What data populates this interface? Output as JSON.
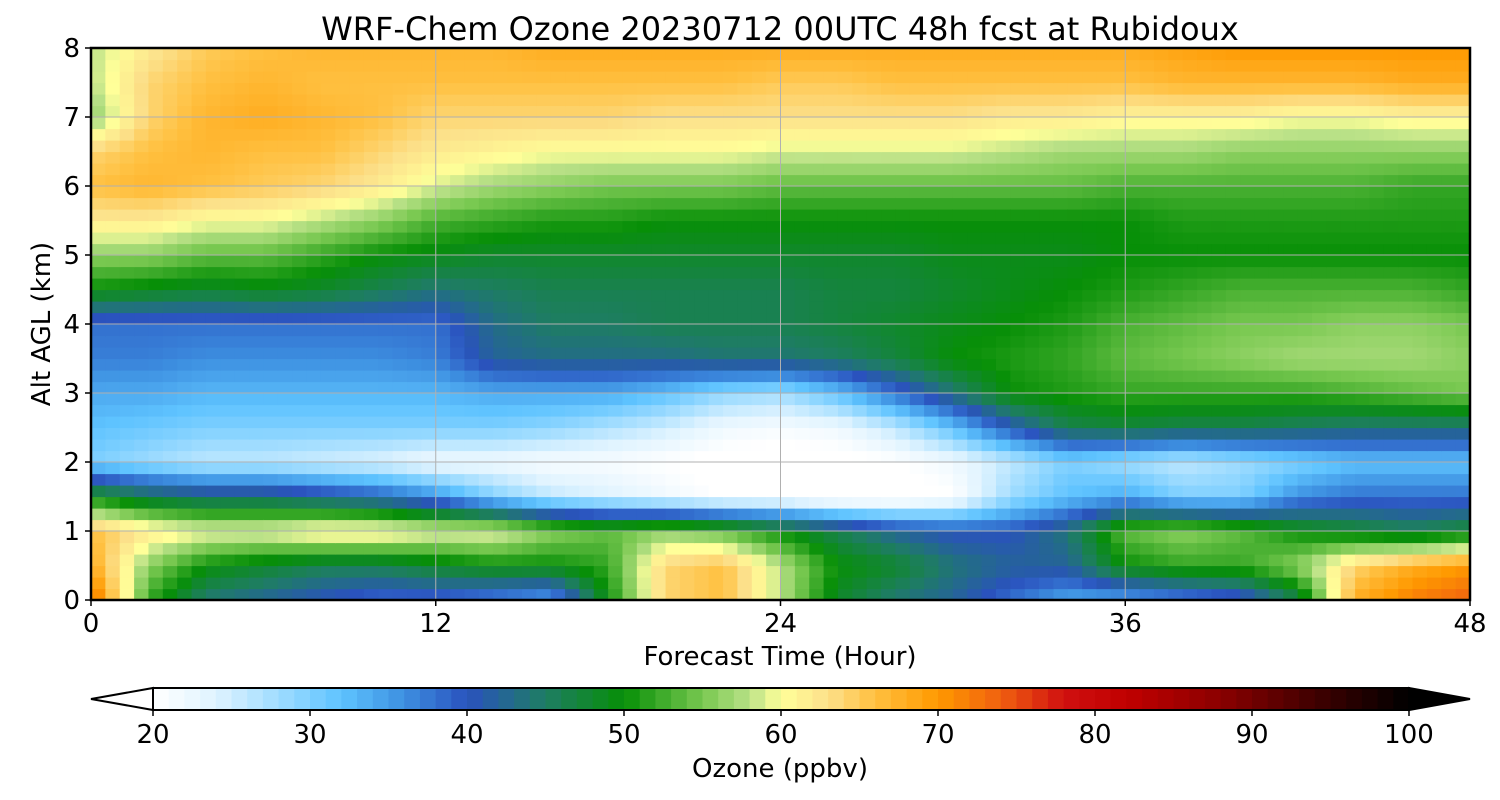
{
  "chart_data": {
    "type": "heatmap",
    "title": "WRF-Chem Ozone  20230712 00UTC 48h fcst at Rubidoux",
    "xlabel": "Forecast Time (Hour)",
    "ylabel": "Alt AGL (km)",
    "xlim": [
      0,
      48
    ],
    "ylim": [
      0,
      8
    ],
    "xticks": [
      0,
      12,
      24,
      36,
      48
    ],
    "xtick_labels": [
      "0",
      "12",
      "24",
      "36",
      "48"
    ],
    "yticks": [
      0,
      1,
      2,
      3,
      4,
      5,
      6,
      7,
      8
    ],
    "ytick_labels": [
      "0",
      "1",
      "2",
      "3",
      "4",
      "5",
      "6",
      "7",
      "8"
    ],
    "grid": true,
    "x": [
      0,
      2,
      4,
      6,
      8,
      10,
      12,
      14,
      16,
      18,
      20,
      22,
      24,
      26,
      28,
      30,
      32,
      34,
      36,
      38,
      40,
      42,
      44,
      46,
      48
    ],
    "y": [
      0,
      0.5,
      1,
      1.5,
      2,
      2.5,
      3,
      3.5,
      4,
      4.5,
      5,
      5.5,
      6,
      6.5,
      7,
      7.5,
      8
    ],
    "z": [
      [
        74,
        52,
        44,
        42,
        40,
        38,
        38,
        36,
        34,
        50,
        64,
        66,
        58,
        48,
        44,
        42,
        38,
        34,
        34,
        36,
        38,
        46,
        68,
        72,
        74
      ],
      [
        68,
        56,
        50,
        48,
        46,
        46,
        48,
        50,
        50,
        52,
        64,
        66,
        58,
        50,
        48,
        44,
        42,
        42,
        50,
        52,
        52,
        56,
        64,
        68,
        70
      ],
      [
        66,
        62,
        60,
        60,
        62,
        62,
        60,
        60,
        56,
        54,
        56,
        54,
        50,
        46,
        42,
        40,
        40,
        44,
        54,
        56,
        54,
        50,
        48,
        46,
        48
      ],
      [
        50,
        46,
        44,
        44,
        42,
        40,
        36,
        30,
        26,
        24,
        22,
        20,
        20,
        18,
        18,
        20,
        28,
        32,
        34,
        30,
        30,
        36,
        38,
        38,
        38
      ],
      [
        30,
        28,
        26,
        26,
        25,
        24,
        22,
        22,
        21,
        21,
        20,
        19,
        19,
        19,
        20,
        22,
        26,
        30,
        28,
        26,
        28,
        30,
        32,
        32,
        32
      ],
      [
        32,
        31,
        30,
        30,
        30,
        30,
        30,
        30,
        29,
        27,
        25,
        22,
        21,
        22,
        26,
        32,
        40,
        46,
        47,
        46,
        46,
        45,
        44,
        44,
        44
      ],
      [
        34,
        34,
        33,
        33,
        33,
        33,
        33,
        34,
        34,
        34,
        32,
        29,
        28,
        32,
        38,
        44,
        50,
        51,
        52,
        52,
        52,
        52,
        53,
        54,
        55
      ],
      [
        37,
        37,
        36,
        36,
        36,
        36,
        37,
        42,
        43,
        43,
        43,
        44,
        44,
        45,
        47,
        50,
        51,
        52,
        54,
        55,
        56,
        57,
        57,
        57,
        56
      ],
      [
        38,
        38,
        38,
        38,
        38,
        38,
        38,
        43,
        45,
        45,
        46,
        46,
        46,
        47,
        48,
        49,
        50,
        51,
        53,
        54,
        55,
        55,
        56,
        56,
        55
      ],
      [
        50,
        49,
        48,
        49,
        48,
        46,
        44,
        45,
        46,
        46,
        46,
        46,
        46,
        47,
        47,
        48,
        49,
        50,
        51,
        52,
        53,
        53,
        53,
        53,
        52
      ],
      [
        56,
        56,
        54,
        54,
        52,
        50,
        49,
        48,
        48,
        48,
        48,
        48,
        48,
        48,
        48,
        49,
        49,
        49,
        50,
        50,
        50,
        50,
        50,
        50,
        50
      ],
      [
        62,
        62,
        60,
        60,
        58,
        56,
        53,
        52,
        51,
        51,
        50,
        50,
        50,
        50,
        50,
        50,
        50,
        50,
        50,
        51,
        51,
        51,
        51,
        51,
        51
      ],
      [
        66,
        67,
        66,
        65,
        64,
        62,
        59,
        57,
        56,
        55,
        55,
        55,
        54,
        54,
        54,
        54,
        54,
        54,
        53,
        53,
        53,
        53,
        53,
        52,
        52
      ],
      [
        64,
        66,
        67,
        66,
        66,
        64,
        62,
        61,
        60,
        60,
        60,
        60,
        59,
        59,
        59,
        59,
        58,
        57,
        57,
        57,
        56,
        56,
        56,
        56,
        56
      ],
      [
        56,
        64,
        67,
        68,
        67,
        66,
        64,
        64,
        64,
        64,
        63,
        63,
        63,
        63,
        63,
        63,
        62,
        62,
        61,
        61,
        61,
        60,
        60,
        61,
        61
      ],
      [
        58,
        64,
        66,
        67,
        66,
        66,
        66,
        66,
        66,
        66,
        66,
        66,
        65,
        65,
        66,
        66,
        66,
        66,
        66,
        67,
        67,
        67,
        67,
        68,
        68
      ],
      [
        58,
        62,
        65,
        66,
        67,
        67,
        67,
        67,
        68,
        68,
        68,
        68,
        68,
        68,
        68,
        68,
        68,
        68,
        68,
        69,
        70,
        70,
        70,
        70,
        70
      ]
    ],
    "colorbar": {
      "label": "Ozone  (ppbv)",
      "min": 20,
      "max": 100,
      "ticks": [
        20,
        30,
        40,
        50,
        60,
        70,
        80,
        90,
        100
      ],
      "extend": "both",
      "colors": [
        [
          20,
          "#ffffff"
        ],
        [
          24,
          "#dff3ff"
        ],
        [
          28,
          "#9fdcff"
        ],
        [
          32,
          "#5ec3ff"
        ],
        [
          36,
          "#3d8fe0"
        ],
        [
          40,
          "#2a52be"
        ],
        [
          45,
          "#1e7d63"
        ],
        [
          50,
          "#078f07"
        ],
        [
          55,
          "#78c850"
        ],
        [
          58,
          "#b9e187"
        ],
        [
          60,
          "#ffff99"
        ],
        [
          63,
          "#fce08a"
        ],
        [
          66,
          "#ffc040"
        ],
        [
          70,
          "#ff9900"
        ],
        [
          74,
          "#f06010"
        ],
        [
          78,
          "#d01010"
        ],
        [
          82,
          "#c00000"
        ],
        [
          88,
          "#8a0000"
        ],
        [
          94,
          "#400000"
        ],
        [
          100,
          "#000000"
        ]
      ]
    }
  }
}
